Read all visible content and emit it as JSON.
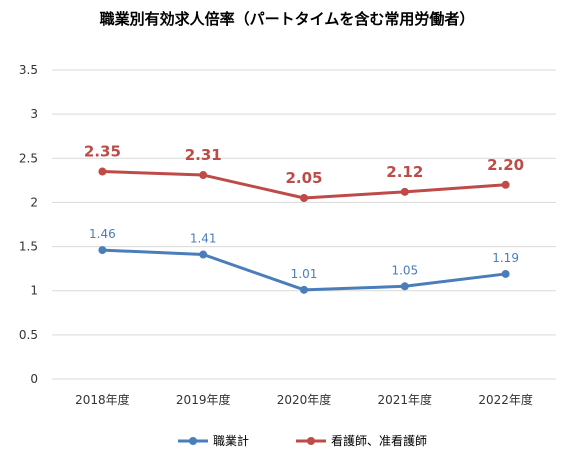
{
  "chart_data": {
    "type": "line",
    "title": "職業別有効求人倍率（パートタイムを含む常用労働者）",
    "xlabel": "",
    "ylabel": "",
    "categories": [
      "2018年度",
      "2019年度",
      "2020年度",
      "2021年度",
      "2022年度"
    ],
    "ylim": [
      0,
      3.5
    ],
    "yticks": [
      "0",
      "0.5",
      "1",
      "1.5",
      "2",
      "2.5",
      "3",
      "3.5"
    ],
    "grid": true,
    "legend_position": "bottom",
    "series": [
      {
        "name": "職業計",
        "values": [
          1.46,
          1.41,
          1.01,
          1.05,
          1.19
        ],
        "labels": [
          "1.46",
          "1.41",
          "1.01",
          "1.05",
          "1.19"
        ],
        "color": "#4a7ebb"
      },
      {
        "name": "看護師、准看護師",
        "values": [
          2.35,
          2.31,
          2.05,
          2.12,
          2.2
        ],
        "labels": [
          "2.35",
          "2.31",
          "2.05",
          "2.12",
          "2.20"
        ],
        "color": "#be4b48"
      }
    ]
  }
}
